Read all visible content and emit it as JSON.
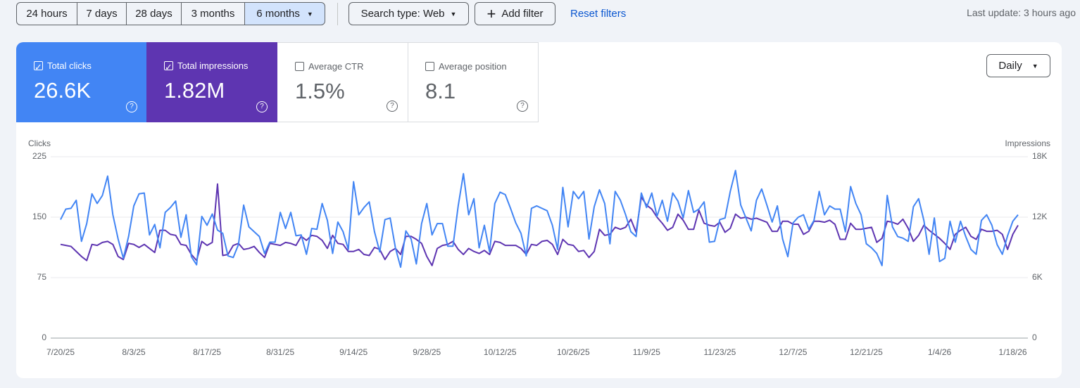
{
  "toolbar": {
    "date_ranges": [
      "24 hours",
      "7 days",
      "28 days",
      "3 months",
      "6 months"
    ],
    "search_type": "Search type: Web",
    "add_filter": "Add filter",
    "reset_filters": "Reset filters",
    "last_update": "Last update: 3 hours ago"
  },
  "metrics": [
    {
      "label": "Total clicks",
      "value": "26.6K"
    },
    {
      "label": "Total impressions",
      "value": "1.82M"
    },
    {
      "label": "Average CTR",
      "value": "1.5%"
    },
    {
      "label": "Average position",
      "value": "8.1"
    }
  ],
  "granularity": "Daily",
  "chart_data": {
    "type": "line",
    "ylabel": "Clicks",
    "y2label": "Impressions",
    "categories": [
      "7/20/25",
      null,
      null,
      null,
      null,
      null,
      null,
      null,
      null,
      null,
      null,
      null,
      null,
      null,
      "8/3/25",
      null,
      null,
      null,
      null,
      null,
      null,
      null,
      null,
      null,
      null,
      null,
      null,
      null,
      "8/17/25",
      null,
      null,
      null,
      null,
      null,
      null,
      null,
      null,
      null,
      null,
      null,
      null,
      null,
      "8/31/25",
      null,
      null,
      null,
      null,
      null,
      null,
      null,
      null,
      null,
      null,
      null,
      null,
      null,
      "9/14/25",
      null,
      null,
      null,
      null,
      null,
      null,
      null,
      null,
      null,
      null,
      null,
      null,
      null,
      "9/28/25",
      null,
      null,
      null,
      null,
      null,
      null,
      null,
      null,
      null,
      null,
      null,
      null,
      null,
      "10/12/25",
      null,
      null,
      null,
      null,
      null,
      null,
      null,
      null,
      null,
      null,
      null,
      null,
      null,
      "10/26/25",
      null,
      null,
      null,
      null,
      null,
      null,
      null,
      null,
      null,
      null,
      null,
      null,
      null,
      "11/9/25",
      null,
      null,
      null,
      null,
      null,
      null,
      null,
      null,
      null,
      null,
      null,
      null,
      null,
      "11/23/25",
      null,
      null,
      null,
      null,
      null,
      null,
      null,
      null,
      null,
      null,
      null,
      null,
      null,
      "12/7/25",
      null,
      null,
      null,
      null,
      null,
      null,
      null,
      null,
      null,
      null,
      null,
      null,
      null,
      "12/21/25",
      null,
      null,
      null,
      null,
      null,
      null,
      null,
      null,
      null,
      null,
      null,
      null,
      null,
      "1/4/26",
      null,
      null,
      null,
      null,
      null,
      null,
      null,
      null,
      null,
      null,
      null,
      null,
      null,
      "1/18/26",
      null
    ],
    "ylim": [
      0,
      225
    ],
    "yticks": [
      0,
      75,
      150,
      225
    ],
    "y2lim": [
      0,
      18000
    ],
    "y2ticks": [
      0,
      {
        "value": 6000,
        "label": "6K"
      },
      {
        "value": 12000,
        "label": "12K"
      },
      {
        "value": 18000,
        "label": "18K"
      }
    ],
    "grid": true,
    "series": [
      {
        "name": "Clicks",
        "color": "#4285f4",
        "values": [
          147,
          160,
          161,
          171,
          120,
          142,
          179,
          167,
          177,
          201,
          153,
          123,
          99,
          126,
          164,
          179,
          180,
          128,
          141,
          112,
          156,
          162,
          170,
          125,
          153,
          101,
          91,
          151,
          140,
          154,
          134,
          130,
          102,
          100,
          116,
          165,
          138,
          132,
          126,
          105,
          119,
          119,
          156,
          136,
          156,
          127,
          128,
          104,
          136,
          135,
          167,
          146,
          105,
          144,
          132,
          110,
          194,
          153,
          162,
          169,
          132,
          107,
          147,
          149,
          112,
          88,
          133,
          123,
          92,
          142,
          167,
          128,
          142,
          142,
          114,
          114,
          164,
          204,
          153,
          173,
          112,
          140,
          107,
          167,
          181,
          178,
          161,
          143,
          130,
          102,
          161,
          164,
          161,
          158,
          140,
          110,
          187,
          138,
          182,
          173,
          182,
          123,
          163,
          184,
          167,
          117,
          182,
          171,
          153,
          132,
          126,
          180,
          162,
          180,
          151,
          171,
          145,
          180,
          170,
          149,
          183,
          156,
          160,
          169,
          119,
          120,
          147,
          149,
          182,
          208,
          165,
          149,
          133,
          171,
          185,
          165,
          144,
          164,
          123,
          101,
          143,
          150,
          153,
          135,
          146,
          182,
          153,
          164,
          160,
          160,
          132,
          188,
          167,
          153,
          117,
          112,
          105,
          90,
          177,
          138,
          126,
          124,
          120,
          163,
          173,
          146,
          104,
          149,
          95,
          99,
          145,
          119,
          145,
          126,
          110,
          104,
          146,
          153,
          140,
          116,
          104,
          127,
          145,
          153
        ]
      },
      {
        "name": "Impressions",
        "color": "#5e35b1",
        "axis": "y2",
        "values": [
          9300,
          9200,
          9100,
          8600,
          8100,
          7700,
          9300,
          9200,
          9500,
          9600,
          9300,
          8100,
          7800,
          9400,
          9300,
          9000,
          9300,
          8900,
          8500,
          10700,
          10700,
          10300,
          10200,
          9300,
          9200,
          8300,
          7700,
          9600,
          9200,
          9500,
          15300,
          8200,
          8300,
          9200,
          9400,
          8800,
          8900,
          9100,
          8500,
          8000,
          9400,
          9300,
          9200,
          9500,
          9400,
          9200,
          10100,
          9700,
          10200,
          10100,
          9700,
          8900,
          10200,
          9400,
          9300,
          8600,
          8600,
          8800,
          8300,
          8200,
          9000,
          8800,
          7800,
          8600,
          8900,
          8300,
          10100,
          10100,
          9800,
          9400,
          8100,
          7200,
          8900,
          9200,
          9300,
          9600,
          8800,
          8300,
          8900,
          8600,
          8400,
          8700,
          8300,
          9600,
          9500,
          9200,
          9200,
          9200,
          8900,
          8300,
          9300,
          9200,
          9600,
          9700,
          9300,
          8300,
          9800,
          9300,
          9200,
          8600,
          8700,
          8000,
          8600,
          10800,
          10200,
          10300,
          11000,
          10800,
          11000,
          11800,
          10500,
          14000,
          13200,
          12800,
          12000,
          11400,
          10700,
          11000,
          12300,
          11700,
          10800,
          10800,
          12700,
          11400,
          11200,
          11100,
          11500,
          10500,
          10900,
          12300,
          11900,
          12000,
          11800,
          11900,
          11700,
          11500,
          10600,
          10600,
          11600,
          11600,
          11300,
          11300,
          10300,
          10600,
          11600,
          11600,
          11500,
          11700,
          11300,
          9800,
          9800,
          11400,
          10800,
          10800,
          10900,
          11000,
          9500,
          9900,
          11600,
          11500,
          11300,
          11800,
          10900,
          9600,
          10200,
          11200,
          10700,
          10300,
          9900,
          9400,
          8800,
          10300,
          10700,
          11000,
          10100,
          9800,
          10800,
          10600,
          10600,
          10700,
          10300,
          8800,
          10300,
          11200
        ]
      }
    ]
  }
}
